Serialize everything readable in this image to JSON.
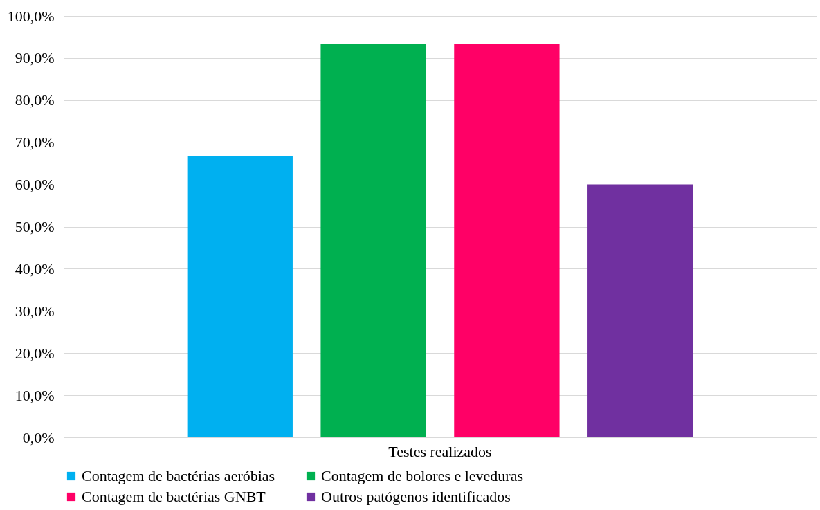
{
  "chart_data": {
    "type": "bar",
    "categories": [
      "Testes realizados"
    ],
    "series": [
      {
        "name": "Contagem de bactérias aeróbias",
        "color": "#00b0f0",
        "values": [
          66.7
        ]
      },
      {
        "name": "Contagem de bolores e leveduras",
        "color": "#00b050",
        "values": [
          93.3
        ]
      },
      {
        "name": "Contagem de bactérias GNBT",
        "color": "#ff0066",
        "values": [
          93.3
        ]
      },
      {
        "name": "Outros patógenos identificados",
        "color": "#7030a0",
        "values": [
          60.0
        ]
      }
    ],
    "ylim": [
      0,
      100
    ],
    "yticks": [
      {
        "value": 0,
        "label": "0,0%"
      },
      {
        "value": 10,
        "label": "10,0%"
      },
      {
        "value": 20,
        "label": "20,0%"
      },
      {
        "value": 30,
        "label": "30,0%"
      },
      {
        "value": 40,
        "label": "40,0%"
      },
      {
        "value": 50,
        "label": "50,0%"
      },
      {
        "value": 60,
        "label": "60,0%"
      },
      {
        "value": 70,
        "label": "70,0%"
      },
      {
        "value": 80,
        "label": "80,0%"
      },
      {
        "value": 90,
        "label": "90,0%"
      },
      {
        "value": 100,
        "label": "100,0%"
      }
    ],
    "grid": "y",
    "legend": "bottom"
  }
}
